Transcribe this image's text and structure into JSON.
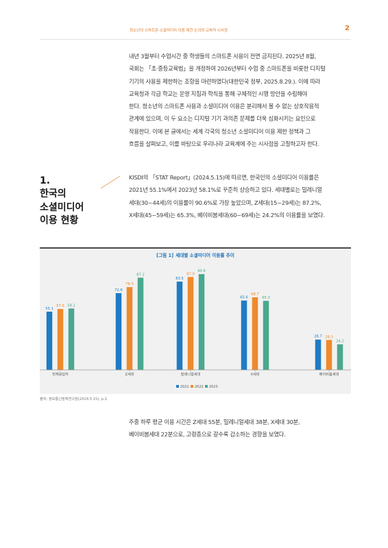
{
  "header": {
    "title": "청소년의 스마트폰·소셜미디어 이용 제한 논의와 교육적 시사점",
    "page_number": "2"
  },
  "paragraphs": {
    "intro": "내년 3월부터 수업시간 중 학생들의 스마트폰 사용이 전면 금지된다. 2025년 8월,\n국회는 「초·중등교육법」을 개정하여 2026년부터 수업 중 스마트폰을 비롯한 디지털\n기기의 사용을 제한하는 조항을 마련하였다(대한민국 정부, 2025.8.29.). 이에 따라\n교육청과 각급 학교는 운영 지침과 학칙을 통해 구체적인 시행 방안을 수립해야\n한다. 청소년의 스마트폰 사용과 소셜미디어 이용은 분리해서 볼 수 없는 상호작용적\n관계에 있으며, 이 두 요소는 디지털 기기 과의존 문제를 더욱 심화시키는 요인으로\n작용한다. 이에 본 글에서는 세계 각국의 청소년 소셜미디어 이용 제한 정책과 그\n흐름을 살펴보고, 이를 바탕으로 우리나라 교육계에 주는 시사점을 고찰하고자 한다.",
    "section1": "KISDI의 「STAT Report」(2024.5.15)에 따르면, 한국인의 소셜미디어 이용률은\n2021년 55.1%에서 2023년 58.1%로 꾸준히 상승하고 있다. 세대별로는 밀레니얼\n세대(30~44세)의 이용률이 90.6%로 가장 높았으며, Z세대(15~29세)는 87.2%,\nX세대(45~59세)는 65.3%, 베이비붐세대(60~69세)는 24.2%의 이용률을 보였다.",
    "closing": "주중 하루 평균 이용 시간은 Z세대 55분, 밀레니얼세대 38분, X세대 30분,\n베이비붐세대 22분으로, 고령층으로 갈수록 감소하는 경향을 보였다."
  },
  "section": {
    "number": "1.",
    "title": "한국의\n소셜미디어\n이용 현황"
  },
  "figure": {
    "label": "[그림 1]",
    "title": "세대별 소셜미디어 이용률 추이",
    "source": "출처: 정보통신정책연구원(2024.5.15), p.2."
  },
  "colors": {
    "accent": "#e07b2a",
    "figure_title": "#1d72b8",
    "series_2021": "#1f7bc4",
    "series_2022": "#ee8a2c",
    "series_2023": "#4aa88f"
  },
  "chart_data": {
    "type": "bar",
    "title": "세대별 소셜미디어 이용률 추이",
    "categories": [
      "전체응답자",
      "Z세대",
      "밀레니얼세대",
      "X세대",
      "베이비붐세대"
    ],
    "series": [
      {
        "name": "2021",
        "values": [
          55.1,
          72.6,
          83.5,
          65.6,
          28.7
        ]
      },
      {
        "name": "2022",
        "values": [
          57.6,
          78.3,
          87.9,
          68.7,
          28.3
        ]
      },
      {
        "name": "2023",
        "values": [
          58.1,
          87.2,
          90.6,
          65.3,
          24.2
        ]
      }
    ],
    "ylim": [
      0,
      100
    ],
    "grid": false,
    "legend_position": "bottom-center"
  }
}
